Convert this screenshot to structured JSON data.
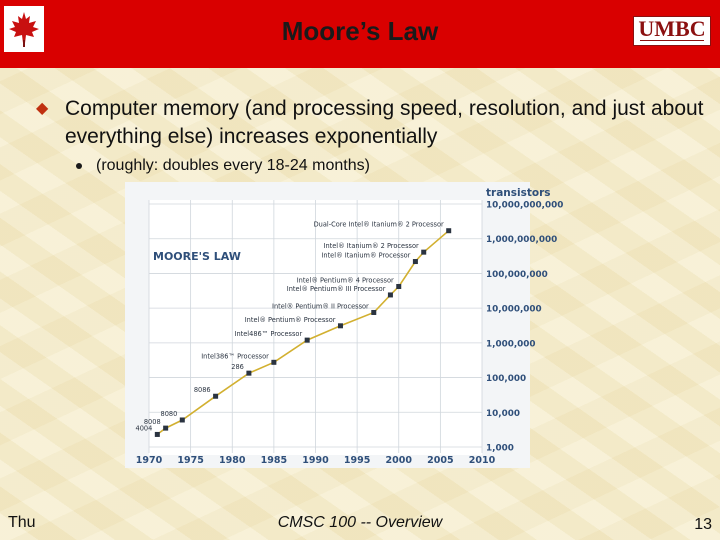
{
  "slide": {
    "title": "Moore’s Law",
    "logo_text": "UMBC",
    "bullet1": "Computer memory (and processing speed, resolution, and just about everything else) increases exponentially",
    "bullet2": "(roughly: doubles every 18-24 months)",
    "footer_left": "Thu",
    "footer_center": "CMSC 100 -- Overview",
    "page_number": "13",
    "colors": {
      "header": "#d90000",
      "background": "#f5ecc8",
      "logo": "#8b1010"
    }
  },
  "chart_data": {
    "type": "line",
    "title": "MOORE'S LAW",
    "ylabel": "transistors",
    "y_scale": "log",
    "xlim": [
      1970,
      2010
    ],
    "ylim": [
      1000,
      10000000000
    ],
    "x_ticks": [
      "1970",
      "1975",
      "1980",
      "1985",
      "1990",
      "1995",
      "2000",
      "2005",
      "2010"
    ],
    "y_ticks": [
      "10,000,000,000",
      "1,000,000,000",
      "100,000,000",
      "10,000,000",
      "1,000,000",
      "100,000",
      "10,000",
      "1,000"
    ],
    "series": [
      {
        "points": [
          {
            "x": 1971,
            "y": 2300,
            "label": "4004"
          },
          {
            "x": 1972,
            "y": 3500,
            "label": "8008"
          },
          {
            "x": 1974,
            "y": 6000,
            "label": "8080"
          },
          {
            "x": 1978,
            "y": 29000,
            "label": "8086"
          },
          {
            "x": 1982,
            "y": 134000,
            "label": "286"
          },
          {
            "x": 1985,
            "y": 275000,
            "label": "Intel386™ Processor"
          },
          {
            "x": 1989,
            "y": 1200000,
            "label": "Intel486™ Processor"
          },
          {
            "x": 1993,
            "y": 3100000,
            "label": "Intel® Pentium® Processor"
          },
          {
            "x": 1997,
            "y": 7500000,
            "label": "Intel® Pentium® II Processor"
          },
          {
            "x": 1999,
            "y": 24000000,
            "label": "Intel® Pentium® III Processor"
          },
          {
            "x": 2000,
            "y": 42000000,
            "label": "Intel® Pentium® 4 Processor"
          },
          {
            "x": 2002,
            "y": 220000000,
            "label": "Intel® Itanium® Processor"
          },
          {
            "x": 2003,
            "y": 410000000,
            "label": "Intel® Itanium® 2 Processor"
          },
          {
            "x": 2006,
            "y": 1700000000,
            "label": "Dual-Core Intel® Itanium® 2 Processor"
          }
        ]
      }
    ]
  }
}
